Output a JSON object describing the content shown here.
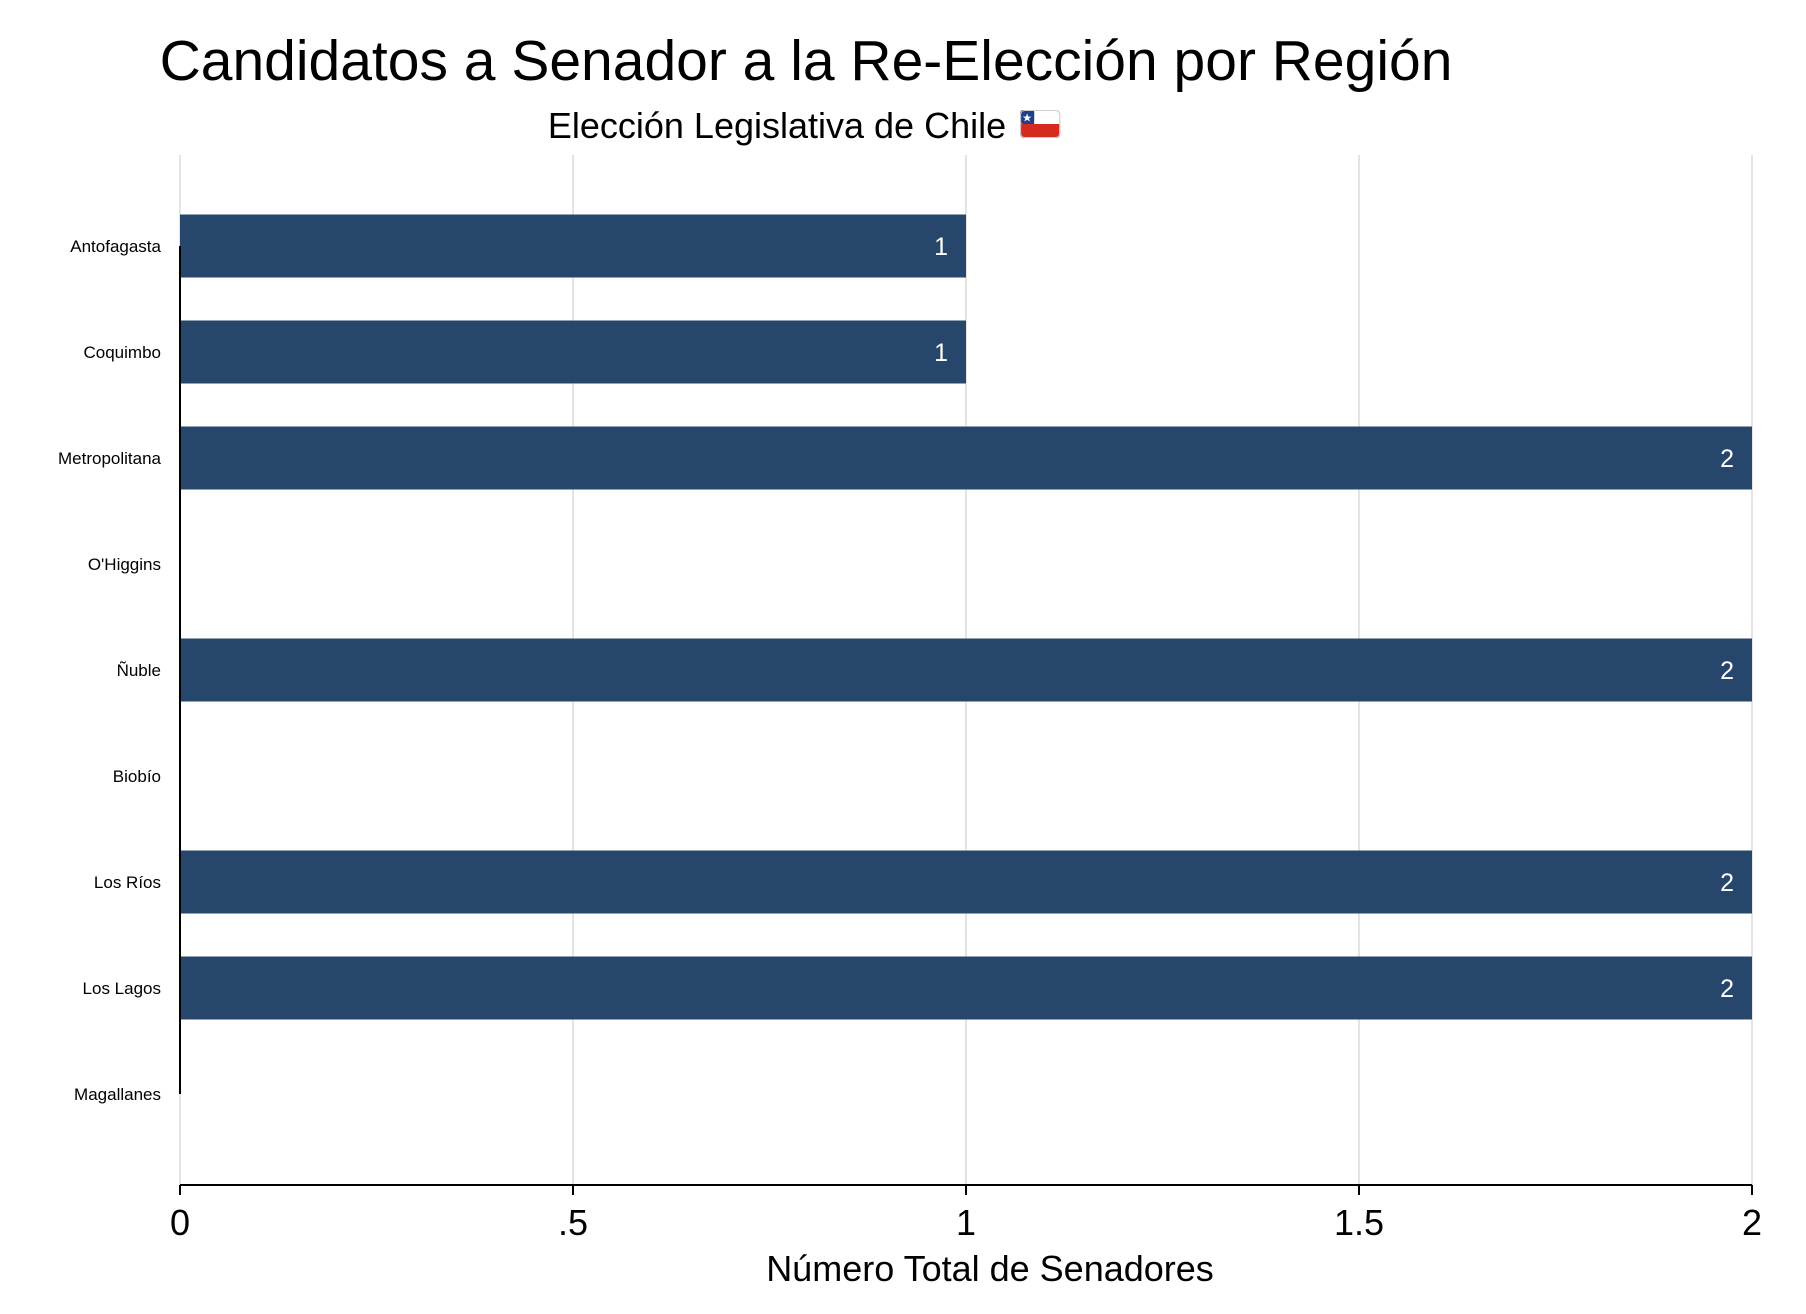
{
  "chart_data": {
    "type": "bar",
    "orientation": "horizontal",
    "title": "Candidatos a Senador a la Re-Elección por Región",
    "subtitle": "Elección Legislativa de Chile",
    "subtitle_flag_icon": "chile-flag-icon",
    "xlabel": "Número Total de Senadores",
    "ylabel": "",
    "xlim": [
      0,
      2
    ],
    "x_ticks": [
      {
        "value": 0,
        "label": "0"
      },
      {
        "value": 0.5,
        "label": ".5"
      },
      {
        "value": 1,
        "label": "1"
      },
      {
        "value": 1.5,
        "label": "1.5"
      },
      {
        "value": 2,
        "label": "2"
      }
    ],
    "categories": [
      "Antofagasta",
      "Coquimbo",
      "Metropolitana",
      "O'Higgins",
      "Ñuble",
      "Biobío",
      "Los Ríos",
      "Los Lagos",
      "Magallanes"
    ],
    "values": [
      1,
      1,
      2,
      null,
      2,
      null,
      2,
      2,
      null
    ],
    "value_labels": [
      "1",
      "1",
      "2",
      "",
      "2",
      "",
      "2",
      "2",
      ""
    ],
    "grid": true,
    "legend": "none",
    "colors": {
      "bar": "#26476b",
      "grid": "#e4e4e4",
      "axis": "#000000",
      "value_label": "#ffffff",
      "flag_blue": "#1f3f86",
      "flag_red": "#d52b1e",
      "flag_white": "#ffffff"
    }
  }
}
